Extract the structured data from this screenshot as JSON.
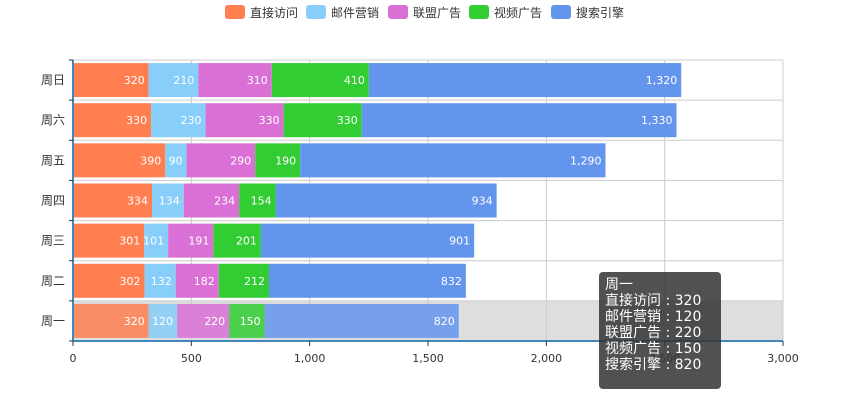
{
  "chart_data": {
    "type": "bar",
    "orientation": "horizontal",
    "stacked": true,
    "categories": [
      "周一",
      "周二",
      "周三",
      "周四",
      "周五",
      "周六",
      "周日"
    ],
    "series": [
      {
        "name": "直接访问",
        "color": "#ff7f50",
        "values": [
          320,
          302,
          301,
          334,
          390,
          330,
          320
        ]
      },
      {
        "name": "邮件营销",
        "color": "#87cefa",
        "values": [
          120,
          132,
          101,
          134,
          90,
          230,
          210
        ]
      },
      {
        "name": "联盟广告",
        "color": "#da70d6",
        "values": [
          220,
          182,
          191,
          234,
          290,
          330,
          310
        ]
      },
      {
        "name": "视频广告",
        "color": "#32cd32",
        "values": [
          150,
          212,
          201,
          154,
          190,
          330,
          410
        ]
      },
      {
        "name": "搜索引擎",
        "color": "#6495ed",
        "values": [
          820,
          832,
          901,
          934,
          1290,
          1330,
          1320
        ]
      }
    ],
    "xlim": [
      0,
      3000
    ],
    "xticks": [
      0,
      500,
      1000,
      1500,
      2000,
      2500,
      3000
    ],
    "xtick_labels": [
      "0",
      "500",
      "1,000",
      "1,500",
      "2,000",
      "2,500",
      "3,000"
    ],
    "grid": true,
    "legend_position": "top-center",
    "highlighted_category": "周一"
  },
  "tooltip": {
    "title": "周一",
    "rows": [
      {
        "name": "直接访问",
        "value": "320"
      },
      {
        "name": "邮件营销",
        "value": "120"
      },
      {
        "name": "联盟广告",
        "value": "220"
      },
      {
        "name": "视频广告",
        "value": "150"
      },
      {
        "name": "搜索引擎",
        "value": "820"
      }
    ]
  }
}
